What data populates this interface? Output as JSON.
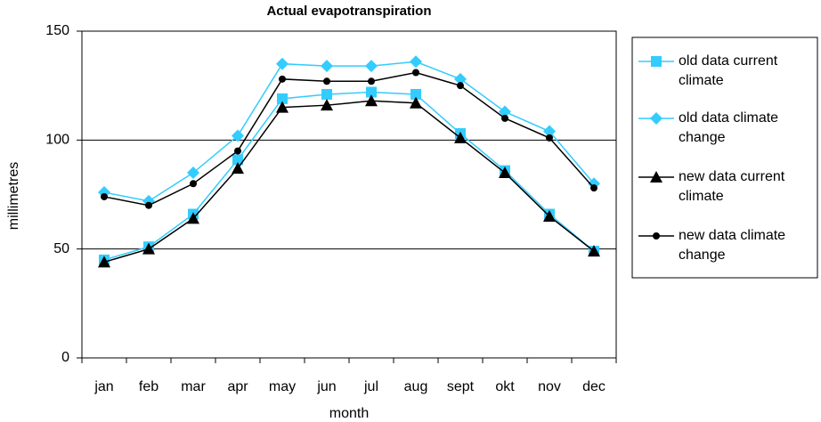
{
  "chart_data": {
    "type": "line",
    "title": "Actual evapotranspiration",
    "x_label": "month",
    "y_label": "millimetres",
    "categories": [
      "jan",
      "feb",
      "mar",
      "apr",
      "may",
      "jun",
      "jul",
      "aug",
      "sept",
      "okt",
      "nov",
      "dec"
    ],
    "series": [
      {
        "name": "old data current climate",
        "color": "#33ccff",
        "marker": "square",
        "values": [
          45,
          51,
          66,
          91,
          119,
          121,
          122,
          121,
          103,
          86,
          66,
          49
        ]
      },
      {
        "name": "old data climate change",
        "color": "#33ccff",
        "marker": "diamond",
        "values": [
          76,
          72,
          85,
          102,
          135,
          134,
          134,
          136,
          128,
          113,
          104,
          80
        ]
      },
      {
        "name": "new data current climate",
        "color": "#000000",
        "marker": "triangle",
        "values": [
          44,
          50,
          64,
          87,
          115,
          116,
          118,
          117,
          101,
          85,
          65,
          49
        ]
      },
      {
        "name": "new data climate change",
        "color": "#000000",
        "marker": "circle",
        "values": [
          74,
          70,
          80,
          95,
          128,
          127,
          127,
          131,
          125,
          110,
          101,
          78
        ]
      }
    ],
    "ylim": [
      0,
      150
    ],
    "yticks": [
      0,
      50,
      100,
      150
    ],
    "grid": true,
    "legend": "right"
  }
}
